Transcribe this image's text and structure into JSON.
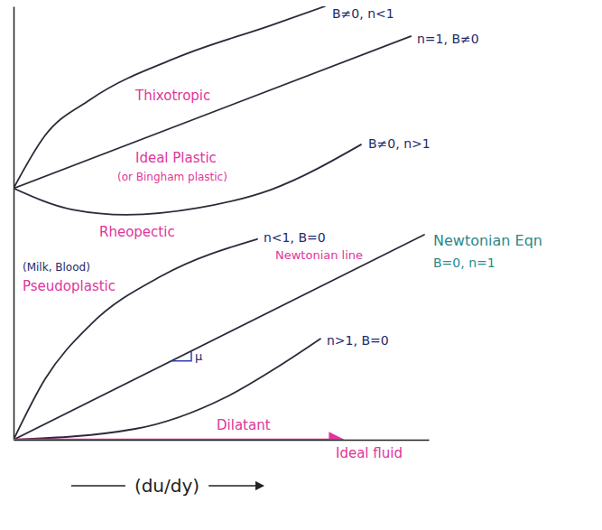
{
  "chart_data": {
    "type": "line",
    "xlabel": "(du/dy)",
    "xlim": [
      0,
      10
    ],
    "ylim": [
      0,
      10
    ],
    "tick_labels": false,
    "series": [
      {
        "name": "Thixotropic",
        "condition": "B≠0, n<1",
        "color": "#2b2b3a",
        "x": [
          0,
          0.76,
          1.85,
          4.02,
          6.2,
          7.5
        ],
        "values": [
          5.8,
          7.02,
          7.85,
          8.85,
          9.56,
          10.0
        ]
      },
      {
        "name": "Ideal Plastic",
        "sublabel": "(or Bingham plastic)",
        "condition": "n=1, B≠0",
        "color": "#2b2b3a",
        "x": [
          0,
          9.57
        ],
        "values": [
          5.8,
          9.31
        ]
      },
      {
        "name": "Rheopectic",
        "condition": "B≠0, n>1",
        "color": "#2b2b3a",
        "x": [
          0,
          1.41,
          2.72,
          4.46,
          6.2,
          8.37
        ],
        "values": [
          5.8,
          5.31,
          5.19,
          5.35,
          5.77,
          6.81
        ]
      },
      {
        "name": "Pseudoplastic",
        "sublabel": "(Milk, Blood)",
        "condition": "n<1, B=0",
        "color": "#2b2b3a",
        "x": [
          0,
          0.76,
          1.85,
          3.59,
          5.87
        ],
        "values": [
          0,
          1.4,
          2.65,
          3.79,
          4.63
        ]
      },
      {
        "name": "Newtonian line",
        "equation_label": "Newtonian Eqn",
        "condition": "B=0, n=1",
        "slope_label": "μ",
        "color": "#2b2b3a",
        "x": [
          0,
          9.89
        ],
        "values": [
          0,
          4.73
        ]
      },
      {
        "name": "Dilatant",
        "condition": "n>1, B=0",
        "color": "#2b2b3a",
        "x": [
          0,
          2.93,
          5.11,
          6.41,
          7.39
        ],
        "values": [
          0,
          0.25,
          0.98,
          1.71,
          2.33
        ]
      },
      {
        "name": "Ideal fluid",
        "color": "#d62f8c",
        "x": [
          0,
          7.9
        ],
        "values": [
          0,
          0
        ]
      }
    ]
  }
}
